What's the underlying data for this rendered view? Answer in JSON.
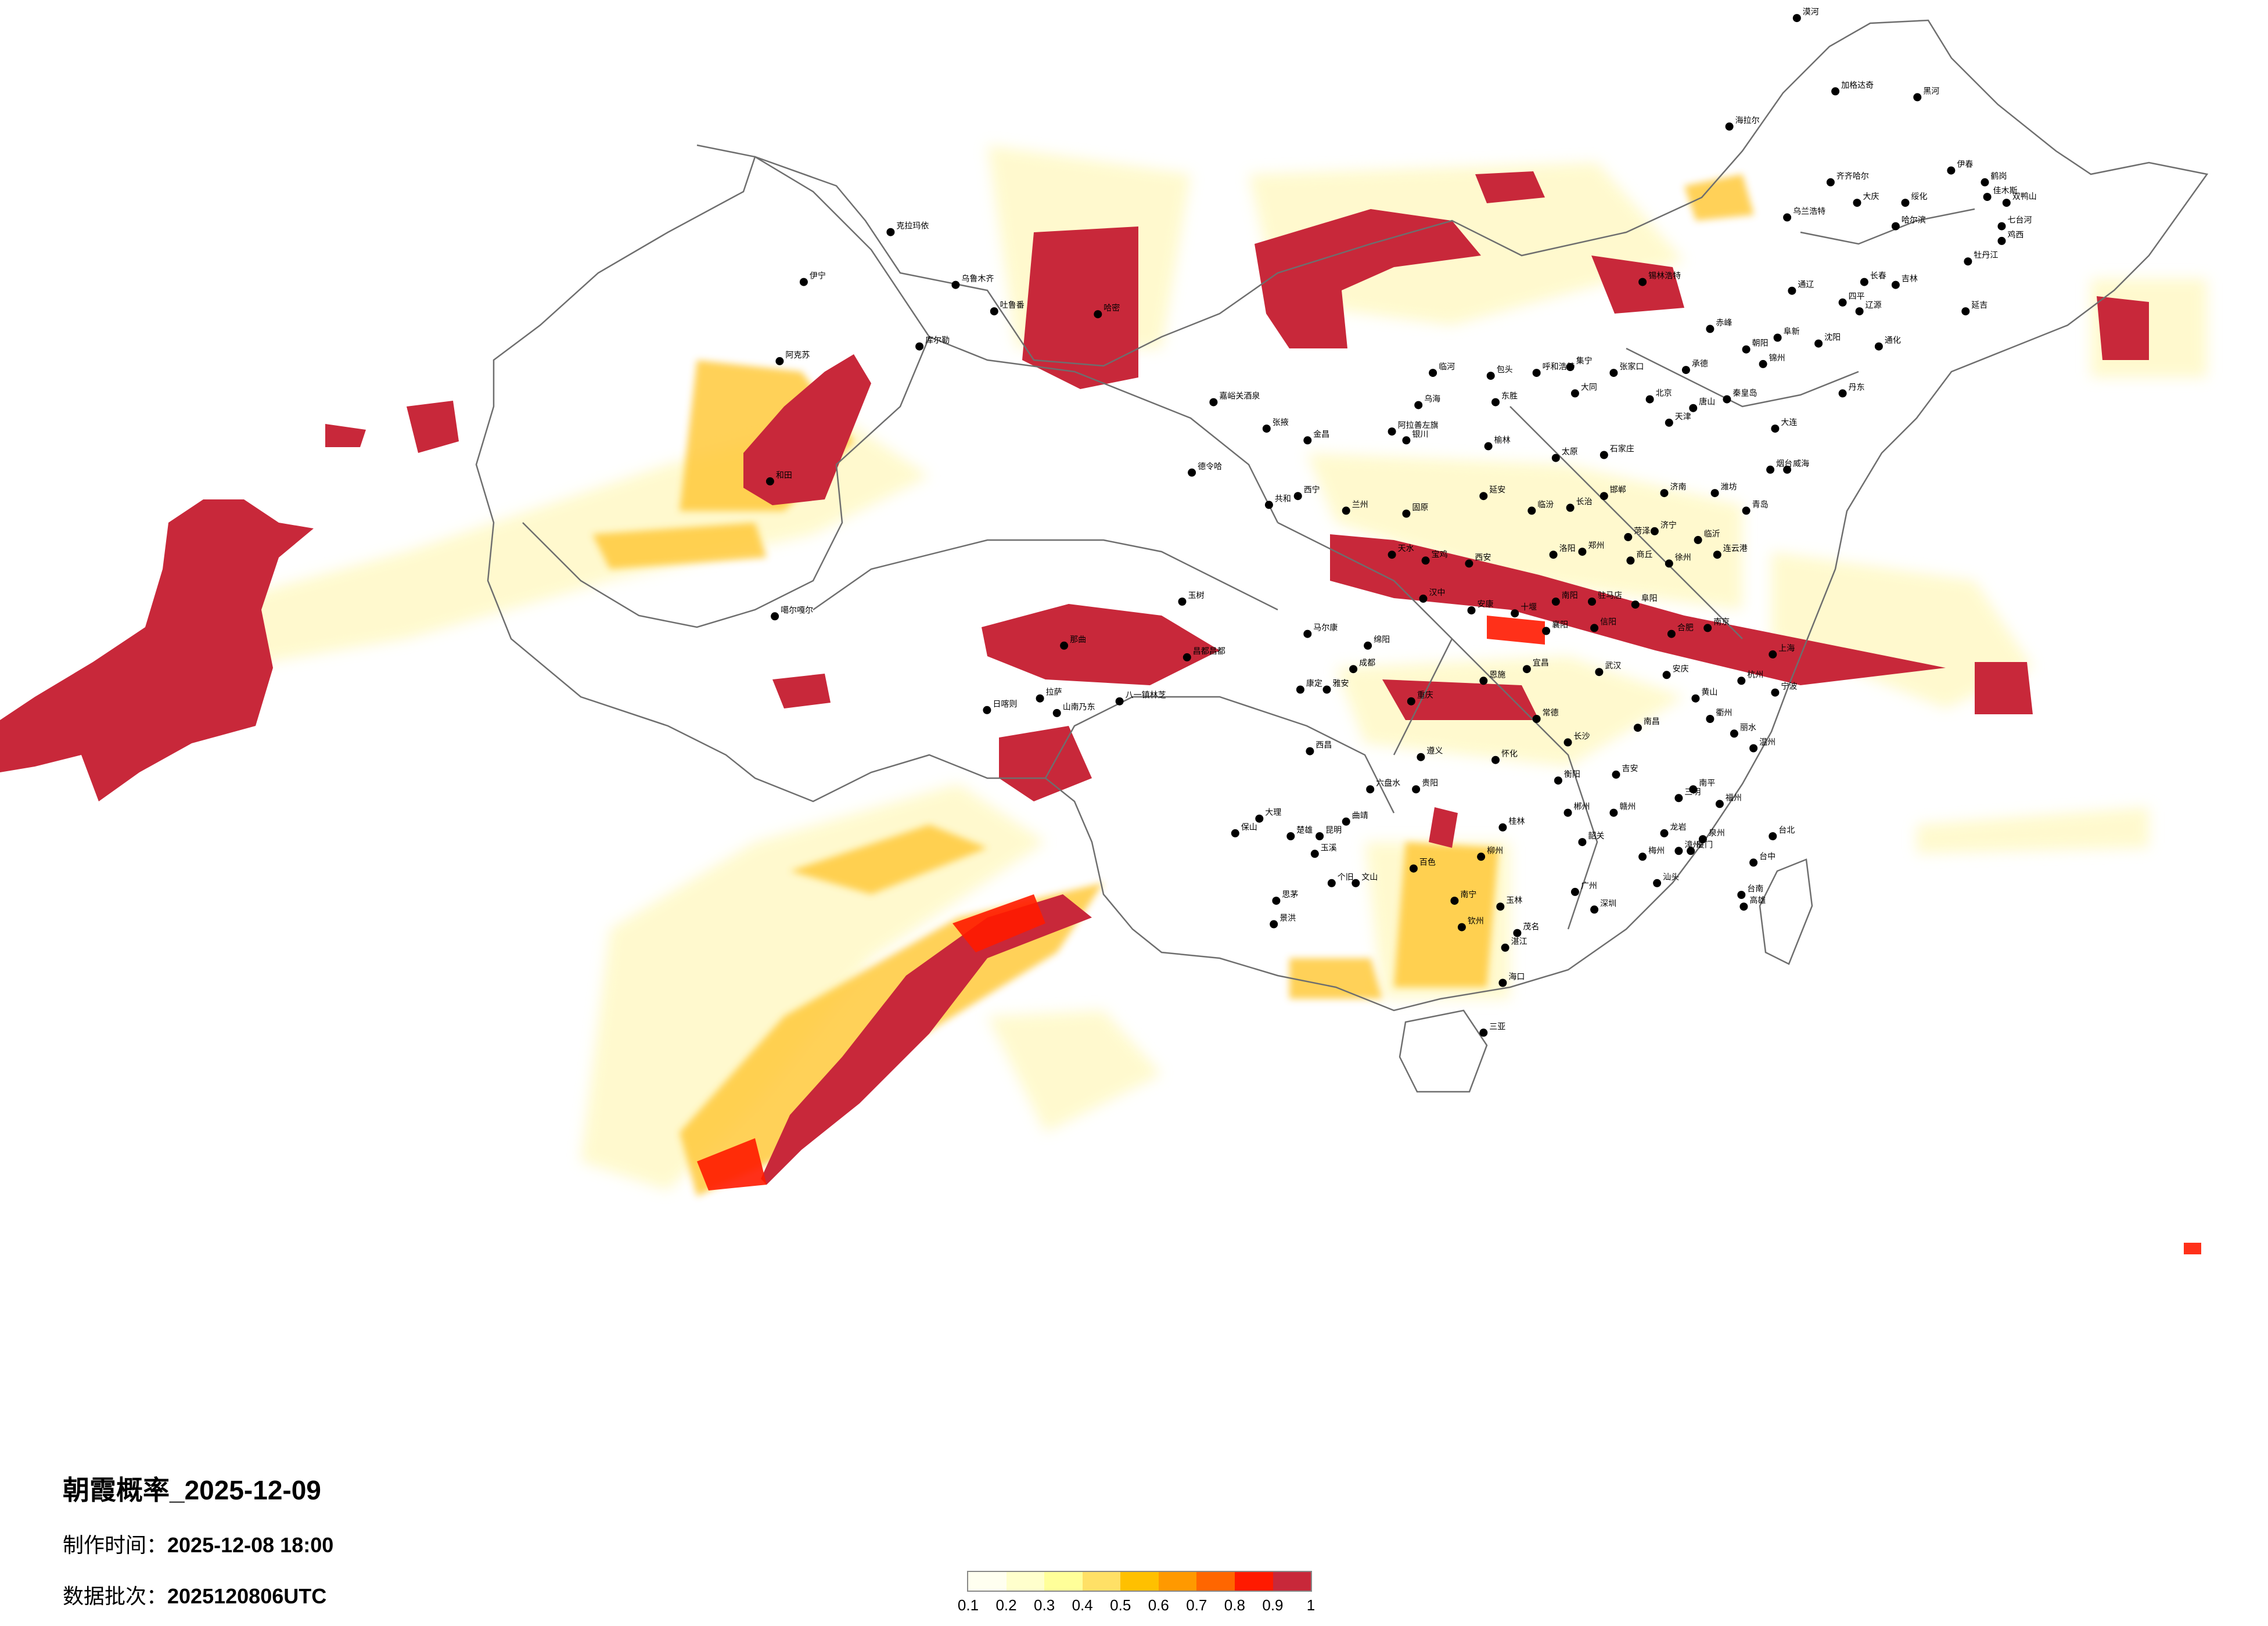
{
  "map": {
    "title": "朝霞概率_2025-12-09",
    "made_label": "制作时间：",
    "made_value": "2025-12-08 18:00",
    "batch_label": "数据批次：",
    "batch_value": "2025120806UTC"
  },
  "legend": {
    "colors": [
      "#fffff0",
      "#ffffcc",
      "#ffff99",
      "#ffe066",
      "#ffc000",
      "#ff9900",
      "#ff6600",
      "#ff1a00",
      "#c8283a"
    ],
    "ticks": [
      "0.1",
      "0.2",
      "0.3",
      "0.4",
      "0.5",
      "0.6",
      "0.7",
      "0.8",
      "0.9",
      "1"
    ]
  },
  "cities": [
    {
      "name": "乌鲁木齐",
      "lon": 87.6,
      "lat": 43.8
    },
    {
      "name": "克拉玛依",
      "lon": 84.9,
      "lat": 45.6
    },
    {
      "name": "伊宁",
      "lon": 81.3,
      "lat": 43.9
    },
    {
      "name": "阿克苏",
      "lon": 80.3,
      "lat": 41.2
    },
    {
      "name": "库尔勒",
      "lon": 86.1,
      "lat": 41.7
    },
    {
      "name": "吐鲁番",
      "lon": 89.2,
      "lat": 42.9
    },
    {
      "name": "哈密",
      "lon": 93.5,
      "lat": 42.8
    },
    {
      "name": "和田",
      "lon": 79.9,
      "lat": 37.1
    },
    {
      "name": "噶尔嘎尔",
      "lon": 80.1,
      "lat": 32.5
    },
    {
      "name": "德令哈",
      "lon": 97.4,
      "lat": 37.4
    },
    {
      "name": "嘉峪关酒泉",
      "lon": 98.3,
      "lat": 39.8
    },
    {
      "name": "张掖",
      "lon": 100.5,
      "lat": 38.9
    },
    {
      "name": "金昌",
      "lon": 102.2,
      "lat": 38.5
    },
    {
      "name": "西宁",
      "lon": 101.8,
      "lat": 36.6
    },
    {
      "name": "兰州",
      "lon": 103.8,
      "lat": 36.1
    },
    {
      "name": "共和",
      "lon": 100.6,
      "lat": 36.3
    },
    {
      "name": "玉树",
      "lon": 97.0,
      "lat": 33.0
    },
    {
      "name": "那曲",
      "lon": 92.1,
      "lat": 31.5
    },
    {
      "name": "拉萨",
      "lon": 91.1,
      "lat": 29.7
    },
    {
      "name": "日喀则",
      "lon": 88.9,
      "lat": 29.3
    },
    {
      "name": "山南乃东",
      "lon": 91.8,
      "lat": 29.2
    },
    {
      "name": "八一镇林芝",
      "lon": 94.4,
      "lat": 29.6
    },
    {
      "name": "昌都昌都",
      "lon": 97.2,
      "lat": 31.1
    },
    {
      "name": "马尔康",
      "lon": 102.2,
      "lat": 31.9
    },
    {
      "name": "康定",
      "lon": 101.9,
      "lat": 30.0
    },
    {
      "name": "雅安",
      "lon": 103.0,
      "lat": 30.0
    },
    {
      "name": "成都",
      "lon": 104.1,
      "lat": 30.7
    },
    {
      "name": "西昌",
      "lon": 102.3,
      "lat": 27.9
    },
    {
      "name": "绵阳",
      "lon": 104.7,
      "lat": 31.5
    },
    {
      "name": "重庆",
      "lon": 106.5,
      "lat": 29.6
    },
    {
      "name": "遵义",
      "lon": 106.9,
      "lat": 27.7
    },
    {
      "name": "贵阳",
      "lon": 106.7,
      "lat": 26.6
    },
    {
      "name": "六盘水",
      "lon": 104.8,
      "lat": 26.6
    },
    {
      "name": "昆明",
      "lon": 102.7,
      "lat": 25.0
    },
    {
      "name": "大理",
      "lon": 100.2,
      "lat": 25.6
    },
    {
      "name": "曲靖",
      "lon": 103.8,
      "lat": 25.5
    },
    {
      "name": "玉溪",
      "lon": 102.5,
      "lat": 24.4
    },
    {
      "name": "个旧",
      "lon": 103.2,
      "lat": 23.4
    },
    {
      "name": "文山",
      "lon": 104.2,
      "lat": 23.4
    },
    {
      "name": "思茅",
      "lon": 100.9,
      "lat": 22.8
    },
    {
      "name": "景洪",
      "lon": 100.8,
      "lat": 22.0
    },
    {
      "name": "保山",
      "lon": 99.2,
      "lat": 25.1
    },
    {
      "name": "楚雄",
      "lon": 101.5,
      "lat": 25.0
    },
    {
      "name": "南宁",
      "lon": 108.3,
      "lat": 22.8
    },
    {
      "name": "柳州",
      "lon": 109.4,
      "lat": 24.3
    },
    {
      "name": "桂林",
      "lon": 110.3,
      "lat": 25.3
    },
    {
      "name": "百色",
      "lon": 106.6,
      "lat": 23.9
    },
    {
      "name": "钦州",
      "lon": 108.6,
      "lat": 21.9
    },
    {
      "name": "玉林",
      "lon": 110.2,
      "lat": 22.6
    },
    {
      "name": "海口",
      "lon": 110.3,
      "lat": 20.0
    },
    {
      "name": "三亚",
      "lon": 109.5,
      "lat": 18.3
    },
    {
      "name": "广州",
      "lon": 113.3,
      "lat": 23.1
    },
    {
      "name": "深圳",
      "lon": 114.1,
      "lat": 22.5
    },
    {
      "name": "汕头",
      "lon": 116.7,
      "lat": 23.4
    },
    {
      "name": "湛江",
      "lon": 110.4,
      "lat": 21.2
    },
    {
      "name": "茂名",
      "lon": 110.9,
      "lat": 21.7
    },
    {
      "name": "韶关",
      "lon": 113.6,
      "lat": 24.8
    },
    {
      "name": "梅州",
      "lon": 116.1,
      "lat": 24.3
    },
    {
      "name": "厦门",
      "lon": 118.1,
      "lat": 24.5
    },
    {
      "name": "福州",
      "lon": 119.3,
      "lat": 26.1
    },
    {
      "name": "泉州",
      "lon": 118.6,
      "lat": 24.9
    },
    {
      "name": "漳州",
      "lon": 117.6,
      "lat": 24.5
    },
    {
      "name": "龙岩",
      "lon": 117.0,
      "lat": 25.1
    },
    {
      "name": "三明",
      "lon": 117.6,
      "lat": 26.3
    },
    {
      "name": "南平",
      "lon": 118.2,
      "lat": 26.6
    },
    {
      "name": "台北",
      "lon": 121.5,
      "lat": 25.0
    },
    {
      "name": "台中",
      "lon": 120.7,
      "lat": 24.1
    },
    {
      "name": "台南",
      "lon": 120.2,
      "lat": 23.0
    },
    {
      "name": "高雄",
      "lon": 120.3,
      "lat": 22.6
    },
    {
      "name": "南昌",
      "lon": 115.9,
      "lat": 28.7
    },
    {
      "name": "赣州",
      "lon": 114.9,
      "lat": 25.8
    },
    {
      "name": "吉安",
      "lon": 115.0,
      "lat": 27.1
    },
    {
      "name": "长沙",
      "lon": 113.0,
      "lat": 28.2
    },
    {
      "name": "衡阳",
      "lon": 112.6,
      "lat": 26.9
    },
    {
      "name": "郴州",
      "lon": 113.0,
      "lat": 25.8
    },
    {
      "name": "怀化",
      "lon": 110.0,
      "lat": 27.6
    },
    {
      "name": "常德",
      "lon": 111.7,
      "lat": 29.0
    },
    {
      "name": "武汉",
      "lon": 114.3,
      "lat": 30.6
    },
    {
      "name": "宜昌",
      "lon": 111.3,
      "lat": 30.7
    },
    {
      "name": "襄阳",
      "lon": 112.1,
      "lat": 32.0
    },
    {
      "name": "十堰",
      "lon": 110.8,
      "lat": 32.6
    },
    {
      "name": "恩施",
      "lon": 109.5,
      "lat": 30.3
    },
    {
      "name": "郑州",
      "lon": 113.6,
      "lat": 34.7
    },
    {
      "name": "洛阳",
      "lon": 112.4,
      "lat": 34.6
    },
    {
      "name": "南阳",
      "lon": 112.5,
      "lat": 33.0
    },
    {
      "name": "信阳",
      "lon": 114.1,
      "lat": 32.1
    },
    {
      "name": "商丘",
      "lon": 115.6,
      "lat": 34.4
    },
    {
      "name": "驻马店",
      "lon": 114.0,
      "lat": 33.0
    },
    {
      "name": "西安",
      "lon": 108.9,
      "lat": 34.3
    },
    {
      "name": "宝鸡",
      "lon": 107.1,
      "lat": 34.4
    },
    {
      "name": "汉中",
      "lon": 107.0,
      "lat": 33.1
    },
    {
      "name": "安康",
      "lon": 109.0,
      "lat": 32.7
    },
    {
      "name": "延安",
      "lon": 109.5,
      "lat": 36.6
    },
    {
      "name": "榆林",
      "lon": 109.7,
      "lat": 38.3
    },
    {
      "name": "银川",
      "lon": 106.3,
      "lat": 38.5
    },
    {
      "name": "固原",
      "lon": 106.3,
      "lat": 36.0
    },
    {
      "name": "天水",
      "lon": 105.7,
      "lat": 34.6
    },
    {
      "name": "太原",
      "lon": 112.5,
      "lat": 37.9
    },
    {
      "name": "大同",
      "lon": 113.3,
      "lat": 40.1
    },
    {
      "name": "临汾",
      "lon": 111.5,
      "lat": 36.1
    },
    {
      "name": "长治",
      "lon": 113.1,
      "lat": 36.2
    },
    {
      "name": "石家庄",
      "lon": 114.5,
      "lat": 38.0
    },
    {
      "name": "北京",
      "lon": 116.4,
      "lat": 39.9
    },
    {
      "name": "天津",
      "lon": 117.2,
      "lat": 39.1
    },
    {
      "name": "唐山",
      "lon": 118.2,
      "lat": 39.6
    },
    {
      "name": "张家口",
      "lon": 114.9,
      "lat": 40.8
    },
    {
      "name": "承德",
      "lon": 117.9,
      "lat": 40.9
    },
    {
      "name": "邯郸",
      "lon": 114.5,
      "lat": 36.6
    },
    {
      "name": "济南",
      "lon": 117.0,
      "lat": 36.7
    },
    {
      "name": "青岛",
      "lon": 120.4,
      "lat": 36.1
    },
    {
      "name": "烟台",
      "lon": 121.4,
      "lat": 37.5
    },
    {
      "name": "威海",
      "lon": 122.1,
      "lat": 37.5
    },
    {
      "name": "潍坊",
      "lon": 119.1,
      "lat": 36.7
    },
    {
      "name": "临沂",
      "lon": 118.4,
      "lat": 35.1
    },
    {
      "name": "济宁",
      "lon": 116.6,
      "lat": 35.4
    },
    {
      "name": "菏泽",
      "lon": 115.5,
      "lat": 35.2
    },
    {
      "name": "连云港",
      "lon": 119.2,
      "lat": 34.6
    },
    {
      "name": "徐州",
      "lon": 117.2,
      "lat": 34.3
    },
    {
      "name": "南京",
      "lon": 118.8,
      "lat": 32.1
    },
    {
      "name": "上海",
      "lon": 121.5,
      "lat": 31.2
    },
    {
      "name": "杭州",
      "lon": 120.2,
      "lat": 30.3
    },
    {
      "name": "宁波",
      "lon": 121.6,
      "lat": 29.9
    },
    {
      "name": "温州",
      "lon": 120.7,
      "lat": 28.0
    },
    {
      "name": "丽水",
      "lon": 119.9,
      "lat": 28.5
    },
    {
      "name": "衢州",
      "lon": 118.9,
      "lat": 29.0
    },
    {
      "name": "合肥",
      "lon": 117.3,
      "lat": 31.9
    },
    {
      "name": "阜阳",
      "lon": 115.8,
      "lat": 32.9
    },
    {
      "name": "安庆",
      "lon": 117.1,
      "lat": 30.5
    },
    {
      "name": "黄山",
      "lon": 118.3,
      "lat": 29.7
    },
    {
      "name": "呼和浩特",
      "lon": 111.7,
      "lat": 40.8
    },
    {
      "name": "包头",
      "lon": 109.8,
      "lat": 40.7
    },
    {
      "name": "临河",
      "lon": 107.4,
      "lat": 40.8
    },
    {
      "name": "东胜",
      "lon": 110.0,
      "lat": 39.8
    },
    {
      "name": "乌海",
      "lon": 106.8,
      "lat": 39.7
    },
    {
      "name": "阿拉善左旗",
      "lon": 105.7,
      "lat": 38.8
    },
    {
      "name": "集宁",
      "lon": 113.1,
      "lat": 41.0
    },
    {
      "name": "赤峰",
      "lon": 118.9,
      "lat": 42.3
    },
    {
      "name": "通辽",
      "lon": 122.3,
      "lat": 43.6
    },
    {
      "name": "锡林浩特",
      "lon": 116.1,
      "lat": 43.9
    },
    {
      "name": "乌兰浩特",
      "lon": 122.1,
      "lat": 46.1
    },
    {
      "name": "海拉尔",
      "lon": 119.7,
      "lat": 49.2
    },
    {
      "name": "加格达奇",
      "lon": 124.1,
      "lat": 50.4
    },
    {
      "name": "漠河",
      "lon": 122.5,
      "lat": 52.9
    },
    {
      "name": "黑河",
      "lon": 127.5,
      "lat": 50.2
    },
    {
      "name": "齐齐哈尔",
      "lon": 123.9,
      "lat": 47.3
    },
    {
      "name": "大庆",
      "lon": 125.0,
      "lat": 46.6
    },
    {
      "name": "绥化",
      "lon": 127.0,
      "lat": 46.6
    },
    {
      "name": "哈尔滨",
      "lon": 126.6,
      "lat": 45.8
    },
    {
      "name": "伊春",
      "lon": 128.9,
      "lat": 47.7
    },
    {
      "name": "佳木斯",
      "lon": 130.4,
      "lat": 46.8
    },
    {
      "name": "鹤岗",
      "lon": 130.3,
      "lat": 47.3
    },
    {
      "name": "双鸭山",
      "lon": 131.2,
      "lat": 46.6
    },
    {
      "name": "七台河",
      "lon": 131.0,
      "lat": 45.8
    },
    {
      "name": "鸡西",
      "lon": 131.0,
      "lat": 45.3
    },
    {
      "name": "牡丹江",
      "lon": 129.6,
      "lat": 44.6
    },
    {
      "name": "长春",
      "lon": 125.3,
      "lat": 43.9
    },
    {
      "name": "吉林",
      "lon": 126.6,
      "lat": 43.8
    },
    {
      "name": "延吉",
      "lon": 129.5,
      "lat": 42.9
    },
    {
      "name": "四平",
      "lon": 124.4,
      "lat": 43.2
    },
    {
      "name": "辽源",
      "lon": 125.1,
      "lat": 42.9
    },
    {
      "name": "通化",
      "lon": 125.9,
      "lat": 41.7
    },
    {
      "name": "沈阳",
      "lon": 123.4,
      "lat": 41.8
    },
    {
      "name": "大连",
      "lon": 121.6,
      "lat": 38.9
    },
    {
      "name": "丹东",
      "lon": 124.4,
      "lat": 40.1
    },
    {
      "name": "锦州",
      "lon": 121.1,
      "lat": 41.1
    },
    {
      "name": "阜新",
      "lon": 121.7,
      "lat": 42.0
    },
    {
      "name": "朝阳",
      "lon": 120.4,
      "lat": 41.6
    },
    {
      "name": "秦皇岛",
      "lon": 119.6,
      "lat": 39.9
    }
  ]
}
